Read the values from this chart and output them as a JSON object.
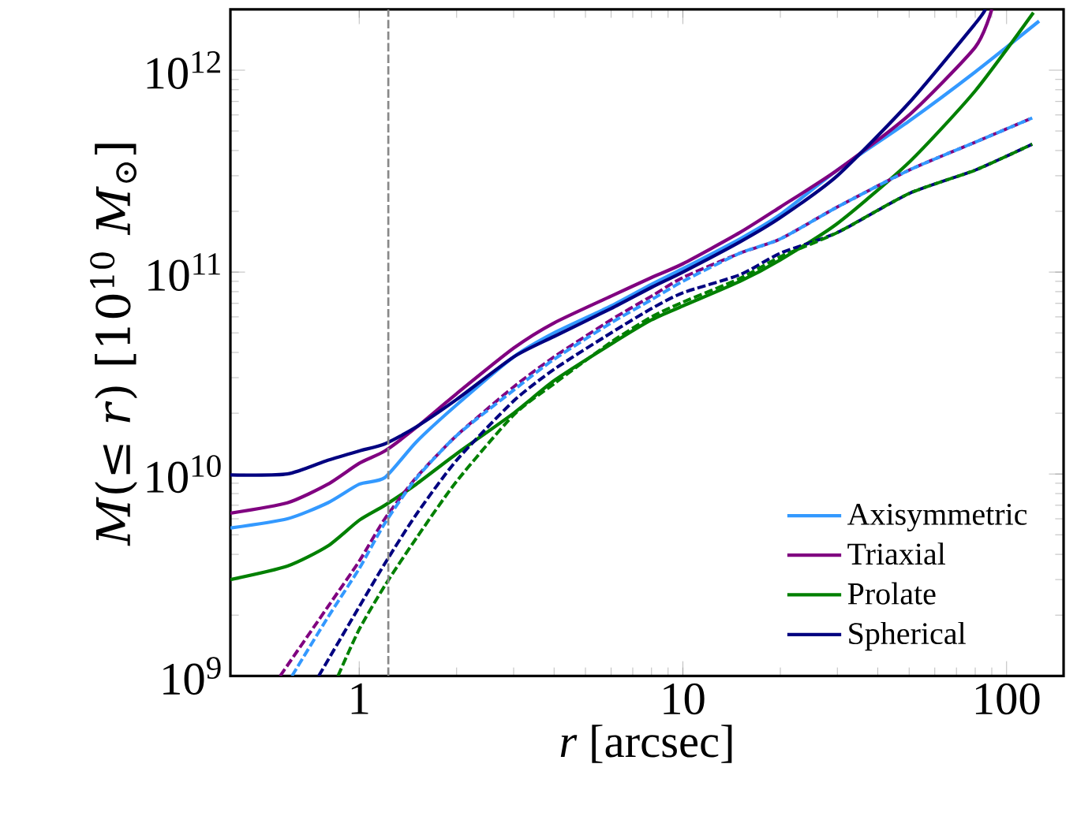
{
  "chart_data": {
    "type": "line",
    "xlabel": "*r* [arcsec]",
    "ylabel": "*M*(≤ *r*) [10$^{10}$ *M*$_{⊙}$]",
    "log": "xy",
    "grid": false,
    "legend": "bottom right",
    "marker": "none",
    "xlim": [
      0.4,
      150
    ],
    "ylim": [
      1000000000.0,
      2000000000000.0
    ],
    "xticks": [
      1,
      10,
      100
    ],
    "yticks": [
      {
        "value": 1000000000.0,
        "label": "10$^{9}$"
      },
      {
        "value": 10000000000.0,
        "label": "10$^{10}$"
      },
      {
        "value": 100000000000.0,
        "label": "10$^{11}$"
      },
      {
        "value": 1000000000000.0,
        "label": "10$^{12}$"
      }
    ],
    "ref_lines": [
      {
        "axis": "x",
        "value": 1.23,
        "color": "#888888",
        "line_style": "dashed"
      }
    ],
    "series": [
      {
        "name": "Axisymmetric",
        "color": "#3399ff",
        "line_style": "solid",
        "x": [
          0.4,
          0.6,
          0.8,
          1,
          1.2,
          1.5,
          2,
          3,
          4,
          6,
          8,
          10,
          15,
          20,
          30,
          50,
          80,
          126
        ],
        "values": [
          5400000000.0,
          6000000000.0,
          7200000000.0,
          8900000000.0,
          9600000000.0,
          14400000000.0,
          22000000000.0,
          38000000000.0,
          50000000000.0,
          68000000000.0,
          87000000000.0,
          104000000000.0,
          146000000000.0,
          193000000000.0,
          320000000000.0,
          560000000000.0,
          980000000000.0,
          1750000000000.0
        ]
      },
      {
        "name": "Triaxial",
        "color": "#800080",
        "line_style": "solid",
        "x": [
          0.4,
          0.6,
          0.8,
          1,
          1.2,
          1.5,
          2,
          3,
          4,
          6,
          8,
          10,
          15,
          20,
          30,
          50,
          80,
          90
        ],
        "values": [
          6400000000.0,
          7200000000.0,
          8900000000.0,
          11300000000.0,
          13000000000.0,
          17000000000.0,
          25000000000.0,
          42000000000.0,
          56000000000.0,
          76000000000.0,
          94000000000.0,
          110000000000.0,
          157000000000.0,
          210000000000.0,
          320000000000.0,
          600000000000.0,
          1300000000000.0,
          2000000000000.0
        ]
      },
      {
        "name": "Prolate",
        "color": "#008000",
        "line_style": "solid",
        "x": [
          0.4,
          0.6,
          0.8,
          1,
          1.2,
          1.5,
          2,
          3,
          4,
          6,
          8,
          10,
          15,
          20,
          30,
          50,
          80,
          121
        ],
        "values": [
          3000000000.0,
          3500000000.0,
          4400000000.0,
          5900000000.0,
          7000000000.0,
          8900000000.0,
          12600000000.0,
          20000000000.0,
          29000000000.0,
          44000000000.0,
          58000000000.0,
          68000000000.0,
          90000000000.0,
          115000000000.0,
          174000000000.0,
          350000000000.0,
          790000000000.0,
          1930000000000.0
        ]
      },
      {
        "name": "Spherical",
        "color": "#000080",
        "line_style": "solid",
        "x": [
          0.4,
          0.6,
          0.8,
          1,
          1.2,
          1.5,
          2,
          3,
          4,
          6,
          8,
          10,
          15,
          20,
          30,
          50,
          80,
          86
        ],
        "values": [
          9900000000.0,
          10000000000.0,
          11700000000.0,
          13000000000.0,
          14100000000.0,
          17100000000.0,
          23400000000.0,
          38000000000.0,
          48000000000.0,
          66000000000.0,
          84000000000.0,
          100000000000.0,
          141000000000.0,
          186000000000.0,
          300000000000.0,
          690000000000.0,
          1700000000000.0,
          2000000000000.0
        ]
      },
      {
        "color": "#800080",
        "line_style": "dashed",
        "x": [
          0.57,
          0.8,
          1,
          1.2,
          1.5,
          2,
          3,
          4,
          6,
          8,
          10,
          15,
          20,
          30,
          50,
          80,
          120
        ],
        "values": [
          1000000000.0,
          2200000000.0,
          3700000000.0,
          6000000000.0,
          9600000000.0,
          15500000000.0,
          27000000000.0,
          38000000000.0,
          58000000000.0,
          76000000000.0,
          94000000000.0,
          124000000000.0,
          146000000000.0,
          210000000000.0,
          320000000000.0,
          440000000000.0,
          580000000000.0
        ]
      },
      {
        "color": "#3399ff",
        "line_style": "dashed",
        "x": [
          0.62,
          0.8,
          1,
          1.2,
          1.5,
          2,
          3,
          4,
          6,
          8,
          10,
          15,
          20,
          30,
          50,
          80,
          120
        ],
        "values": [
          1000000000.0,
          1950000000.0,
          3400000000.0,
          5700000000.0,
          9500000000.0,
          15500000000.0,
          26000000000.0,
          37000000000.0,
          56000000000.0,
          73000000000.0,
          90000000000.0,
          124000000000.0,
          146000000000.0,
          210000000000.0,
          320000000000.0,
          440000000000.0,
          580000000000.0
        ]
      },
      {
        "color": "#000080",
        "line_style": "dashed",
        "x": [
          0.75,
          1,
          1.2,
          1.5,
          2,
          3,
          4,
          6,
          8,
          10,
          15,
          20,
          30,
          50,
          80,
          120
        ],
        "values": [
          1000000000.0,
          2200000000.0,
          3600000000.0,
          6300000000.0,
          11700000000.0,
          23000000000.0,
          33000000000.0,
          50000000000.0,
          66000000000.0,
          79000000000.0,
          97000000000.0,
          124000000000.0,
          157000000000.0,
          245000000000.0,
          320000000000.0,
          430000000000.0
        ]
      },
      {
        "color": "#008000",
        "line_style": "dashed",
        "x": [
          0.86,
          1,
          1.2,
          1.5,
          2,
          3,
          4,
          6,
          8,
          10,
          15,
          20,
          30,
          50,
          80,
          120
        ],
        "values": [
          1000000000.0,
          1700000000.0,
          2800000000.0,
          4800000000.0,
          9200000000.0,
          19600000000.0,
          28000000000.0,
          45000000000.0,
          60000000000.0,
          71000000000.0,
          93000000000.0,
          119000000000.0,
          157000000000.0,
          245000000000.0,
          320000000000.0,
          430000000000.0
        ]
      }
    ]
  }
}
